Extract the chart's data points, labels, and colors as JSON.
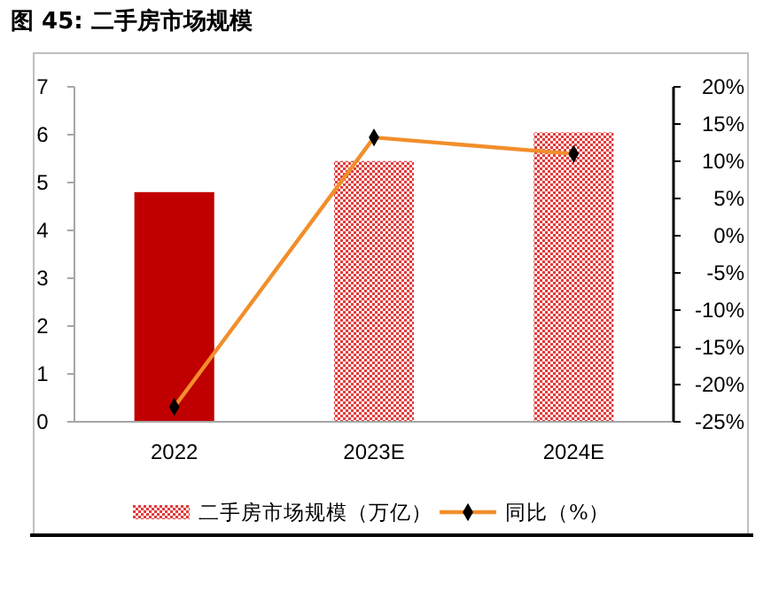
{
  "chart_data": {
    "type": "bar",
    "title": "图 45: 二手房市场规模",
    "categories": [
      "2022",
      "2023E",
      "2024E"
    ],
    "series": [
      {
        "name": "二手房市场规模（万亿）",
        "color": "#e03c3c",
        "colors": [
          "#c00000",
          "#e03c3c",
          "#e03c3c"
        ],
        "values": [
          4.8,
          5.45,
          6.05
        ]
      },
      {
        "name": "同比（%）",
        "type": "line",
        "axis": "y2",
        "color": "#f28e2b",
        "marker": "diamond",
        "values": [
          -23,
          13.2,
          11
        ]
      }
    ],
    "ylim": [
      0,
      7
    ],
    "yticks": [
      0,
      1,
      2,
      3,
      4,
      5,
      6,
      7
    ],
    "y2lim": [
      -25,
      20
    ],
    "y2ticks": [
      {
        "value": -25,
        "label": "-25%"
      },
      {
        "value": -20,
        "label": "-20%"
      },
      {
        "value": -15,
        "label": "-15%"
      },
      {
        "value": -10,
        "label": "-10%"
      },
      {
        "value": -5,
        "label": "-5%"
      },
      {
        "value": 0,
        "label": "0%"
      },
      {
        "value": 5,
        "label": "5%"
      },
      {
        "value": 10,
        "label": "10%"
      },
      {
        "value": 15,
        "label": "15%"
      },
      {
        "value": 20,
        "label": "20%"
      }
    ],
    "legend": "bottom",
    "grid": false
  }
}
